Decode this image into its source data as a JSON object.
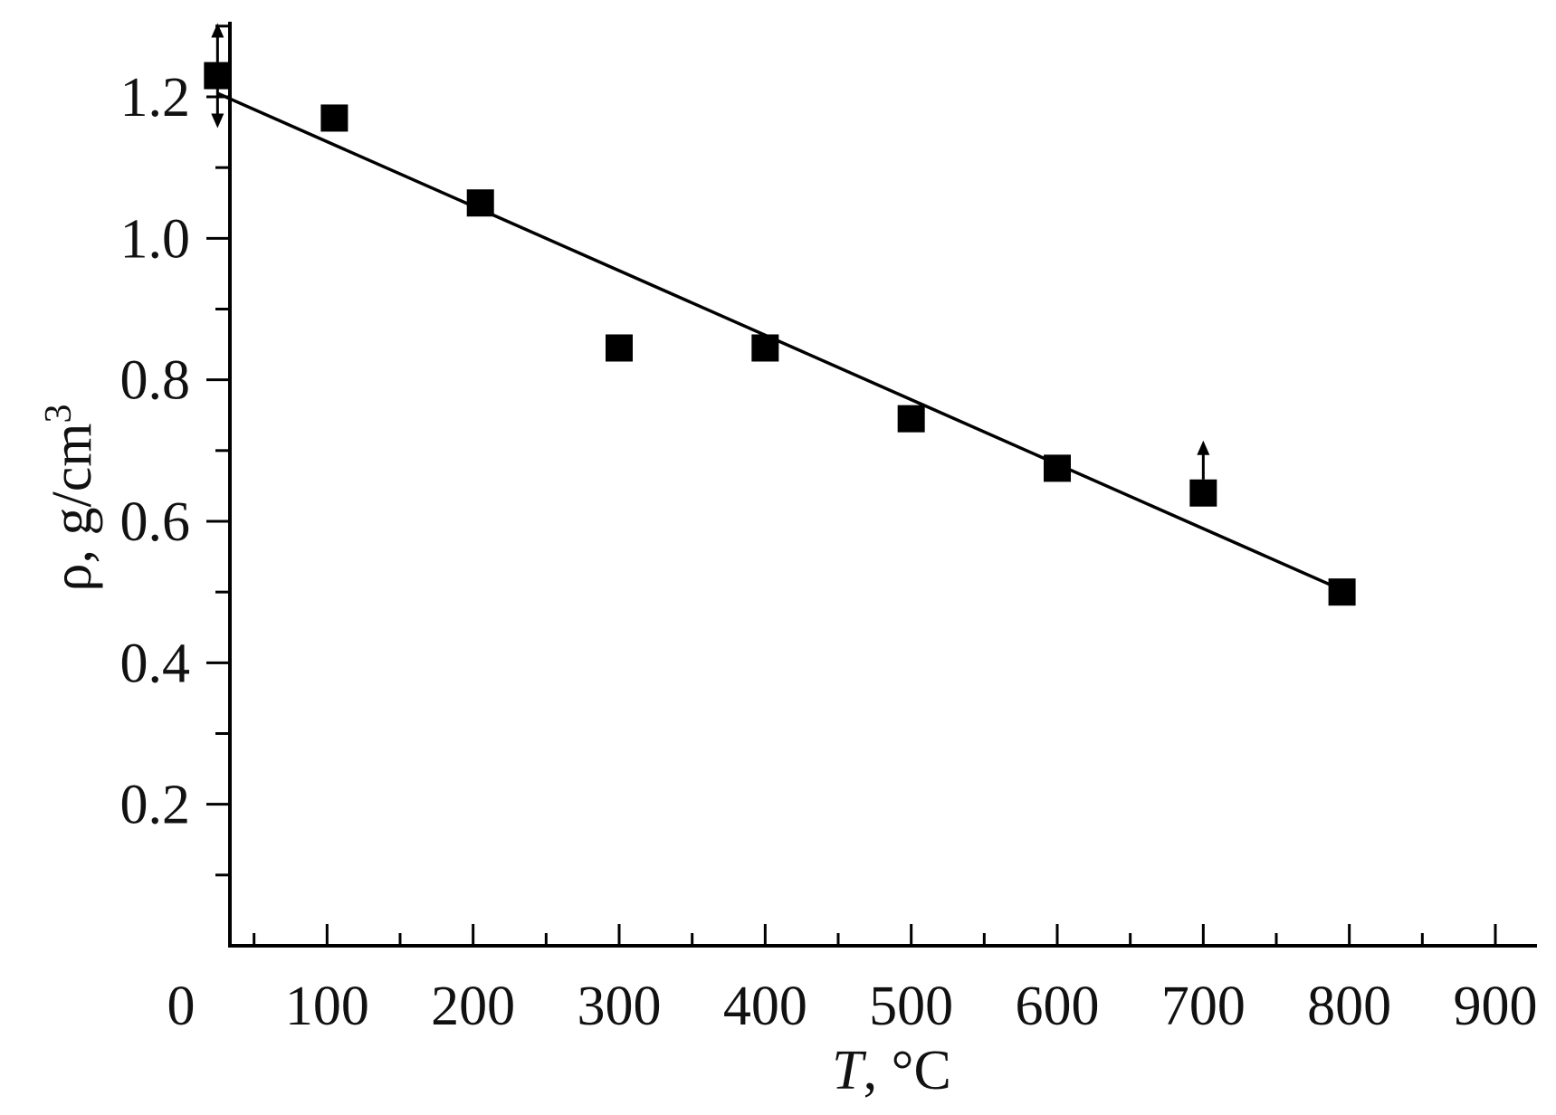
{
  "chart_data": {
    "type": "scatter",
    "xlabel": {
      "italic": "T",
      "rest": ", °C"
    },
    "ylabel": {
      "main": "ρ, g/cm",
      "sup": "3"
    },
    "xlim": [
      0,
      900
    ],
    "ylim": [
      0,
      1.3
    ],
    "x_ticks": {
      "major": [
        0,
        100,
        200,
        300,
        400,
        500,
        600,
        700,
        800,
        900
      ],
      "minor_step": 50
    },
    "x_tick_labels": [
      "0",
      "100",
      "200",
      "300",
      "400",
      "500",
      "600",
      "700",
      "800",
      "900"
    ],
    "y_ticks": {
      "major": [
        0.2,
        0.4,
        0.6,
        0.8,
        1.0,
        1.2
      ],
      "minor_step": 0.1
    },
    "y_tick_labels": [
      "0.2",
      "0.4",
      "0.6",
      "0.8",
      "1.0",
      "1.2"
    ],
    "grid": false,
    "legend": "none",
    "series": [
      {
        "marker": "square",
        "color": "#000000",
        "points": [
          {
            "x": 25,
            "y": 1.23,
            "error_arrow": "both"
          },
          {
            "x": 105,
            "y": 1.17
          },
          {
            "x": 205,
            "y": 1.05
          },
          {
            "x": 300,
            "y": 0.845
          },
          {
            "x": 400,
            "y": 0.845
          },
          {
            "x": 500,
            "y": 0.745
          },
          {
            "x": 600,
            "y": 0.675
          },
          {
            "x": 700,
            "y": 0.64,
            "error_arrow": "up"
          },
          {
            "x": 795,
            "y": 0.5
          }
        ]
      }
    ],
    "fit_line": {
      "color": "#000000",
      "x": [
        25,
        795
      ],
      "y": [
        1.205,
        0.503
      ]
    }
  }
}
